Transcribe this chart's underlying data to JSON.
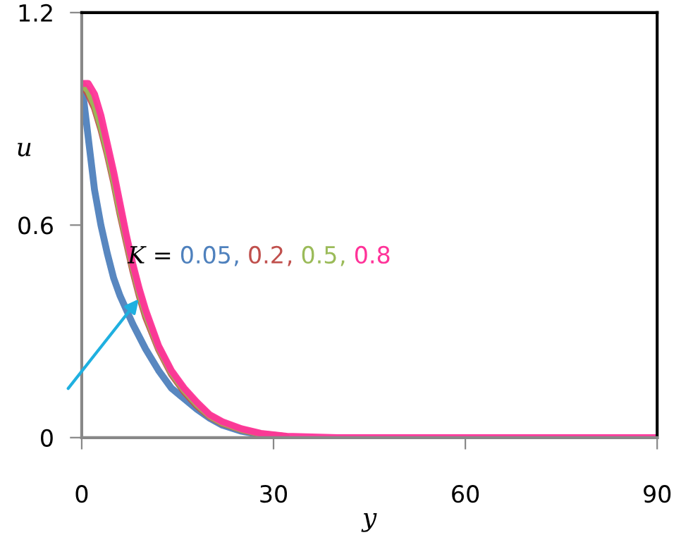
{
  "chart_data": {
    "type": "line",
    "xlabel": "y",
    "ylabel": "u",
    "annotations": [
      "K =",
      ","
    ],
    "xlim": [
      0,
      90
    ],
    "ylim": [
      0,
      1.2
    ],
    "xticks": [
      0,
      30,
      60,
      90
    ],
    "yticks": [
      0,
      0.6,
      1.2
    ],
    "grid": false,
    "marker": "none",
    "line_style": "solid",
    "series": [
      {
        "name": "0.05",
        "color": "#4f81bd",
        "x": [
          0,
          1,
          2,
          3,
          4,
          5,
          6,
          8,
          10,
          12,
          14,
          16,
          18,
          20,
          22,
          25,
          28,
          32
        ],
        "values": [
          1.0,
          0.85,
          0.7,
          0.6,
          0.52,
          0.45,
          0.4,
          0.32,
          0.25,
          0.19,
          0.14,
          0.11,
          0.08,
          0.055,
          0.035,
          0.018,
          0.008,
          0.002
        ]
      },
      {
        "name": "0.2",
        "color": "#c0504d",
        "x": [
          0,
          1,
          2,
          3,
          4,
          5,
          6,
          7,
          8,
          9,
          10,
          12,
          14,
          16,
          18,
          20,
          22,
          25,
          28,
          32
        ],
        "values": [
          1.0,
          0.97,
          0.93,
          0.87,
          0.8,
          0.72,
          0.63,
          0.55,
          0.47,
          0.4,
          0.34,
          0.25,
          0.18,
          0.13,
          0.09,
          0.06,
          0.04,
          0.022,
          0.01,
          0.003
        ]
      },
      {
        "name": "0.5",
        "color": "#9bbb59",
        "x": [
          0,
          1,
          2,
          3,
          4,
          5,
          6,
          7,
          8,
          9,
          10,
          12,
          14,
          16,
          18,
          20,
          22,
          25,
          28,
          32
        ],
        "values": [
          1.0,
          0.98,
          0.94,
          0.88,
          0.81,
          0.73,
          0.64,
          0.56,
          0.48,
          0.41,
          0.35,
          0.255,
          0.185,
          0.135,
          0.095,
          0.062,
          0.042,
          0.023,
          0.011,
          0.003
        ]
      },
      {
        "name": "0.8",
        "color": "#ff3399",
        "x": [
          0,
          1,
          2,
          3,
          4,
          5,
          6,
          7,
          8,
          9,
          10,
          12,
          14,
          16,
          18,
          20,
          22,
          25,
          28,
          32,
          40,
          60,
          90
        ],
        "values": [
          1.0,
          1.0,
          0.97,
          0.91,
          0.83,
          0.75,
          0.66,
          0.57,
          0.49,
          0.42,
          0.36,
          0.26,
          0.19,
          0.14,
          0.1,
          0.065,
          0.045,
          0.025,
          0.012,
          0.004,
          0,
          0,
          0
        ]
      }
    ]
  }
}
